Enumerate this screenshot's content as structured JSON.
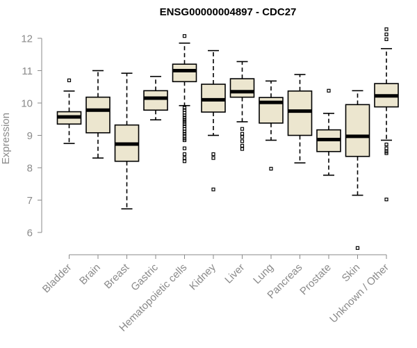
{
  "chart_data": {
    "type": "boxplot",
    "title": "ENSG00000004897 - CDC27",
    "xlabel": "",
    "ylabel": "Expression",
    "ylim": [
      5.5,
      12.4
    ],
    "yticks": [
      6,
      7,
      8,
      9,
      10,
      11,
      12
    ],
    "grid": false,
    "box_fill": "#ece6cf",
    "categories": [
      "Bladder",
      "Brain",
      "Breast",
      "Gastric",
      "Hematopoietic cells",
      "Kidney",
      "Liver",
      "Lung",
      "Pancreas",
      "Prostate",
      "Skin",
      "Unknown / Other"
    ],
    "boxes": [
      {
        "min": 8.75,
        "q1": 9.35,
        "median": 9.57,
        "q3": 9.73,
        "max": 10.37,
        "outliers": [
          10.7
        ]
      },
      {
        "min": 8.3,
        "q1": 9.08,
        "median": 9.78,
        "q3": 10.18,
        "max": 11.0,
        "outliers": []
      },
      {
        "min": 6.73,
        "q1": 8.2,
        "median": 8.73,
        "q3": 9.32,
        "max": 10.92,
        "outliers": []
      },
      {
        "min": 9.48,
        "q1": 9.78,
        "median": 10.15,
        "q3": 10.38,
        "max": 10.82,
        "outliers": []
      },
      {
        "min": 9.92,
        "q1": 10.66,
        "median": 11.0,
        "q3": 11.2,
        "max": 11.85,
        "outliers": [
          12.07,
          9.85,
          9.78,
          9.7,
          9.62,
          9.55,
          9.48,
          9.42,
          9.35,
          9.28,
          9.2,
          9.12,
          9.05,
          8.98,
          8.9,
          8.85,
          8.6,
          8.42,
          8.3,
          8.2
        ]
      },
      {
        "min": 9.0,
        "q1": 9.72,
        "median": 10.1,
        "q3": 10.58,
        "max": 11.62,
        "outliers": [
          8.42,
          8.3,
          7.33
        ]
      },
      {
        "min": 9.42,
        "q1": 10.18,
        "median": 10.35,
        "q3": 10.75,
        "max": 11.28,
        "outliers": [
          9.2,
          9.05,
          8.95,
          8.82,
          8.68,
          8.58
        ]
      },
      {
        "min": 8.85,
        "q1": 9.38,
        "median": 10.02,
        "q3": 10.17,
        "max": 10.68,
        "outliers": [
          7.97
        ]
      },
      {
        "min": 8.15,
        "q1": 9.0,
        "median": 9.75,
        "q3": 10.37,
        "max": 10.88,
        "outliers": []
      },
      {
        "min": 7.77,
        "q1": 8.5,
        "median": 8.87,
        "q3": 9.17,
        "max": 9.68,
        "outliers": [
          10.38
        ]
      },
      {
        "min": 7.15,
        "q1": 8.35,
        "median": 8.97,
        "q3": 9.95,
        "max": 10.38,
        "outliers": [
          5.52
        ]
      },
      {
        "min": 8.85,
        "q1": 9.88,
        "median": 10.22,
        "q3": 10.6,
        "max": 11.68,
        "outliers": [
          12.28,
          12.12,
          11.97,
          8.72,
          8.6,
          8.5,
          8.45,
          7.02
        ]
      }
    ]
  }
}
